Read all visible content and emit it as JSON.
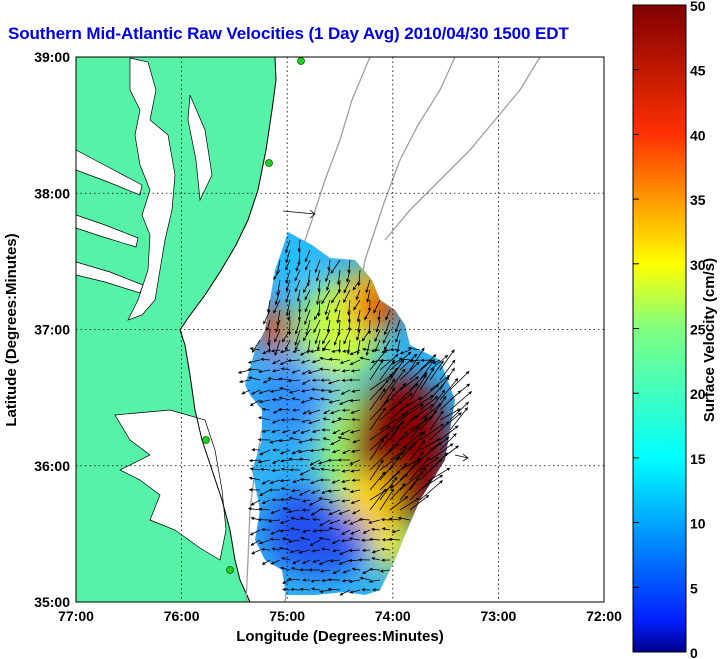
{
  "title": "Southern Mid-Atlantic Raw Velocities (1 Day Avg) 2010/04/30 1500 EDT",
  "map": {
    "xlabel": "Longitude (Degrees:Minutes)",
    "ylabel": "Latitude (Degrees:Minutes)",
    "lon_ticks": [
      "77:00",
      "76:00",
      "75:00",
      "74:00",
      "73:00",
      "72:00"
    ],
    "lat_ticks": [
      "39:00",
      "38:00",
      "37:00",
      "36:00",
      "35:00"
    ],
    "lon_range": [
      -77,
      -72
    ],
    "lat_range": [
      35,
      39
    ],
    "grid": true
  },
  "colorbar": {
    "label": "Surface Velocity (cm/s)",
    "ticks": [
      "0",
      "5",
      "10",
      "15",
      "20",
      "25",
      "30",
      "35",
      "40",
      "45",
      "50"
    ],
    "range": [
      0,
      50
    ],
    "colormap": "jet"
  },
  "colors": {
    "land": "#55f2a8",
    "bathymetry": "#a0a0a0",
    "title": "#0000ee",
    "station": "#22cc22"
  }
}
